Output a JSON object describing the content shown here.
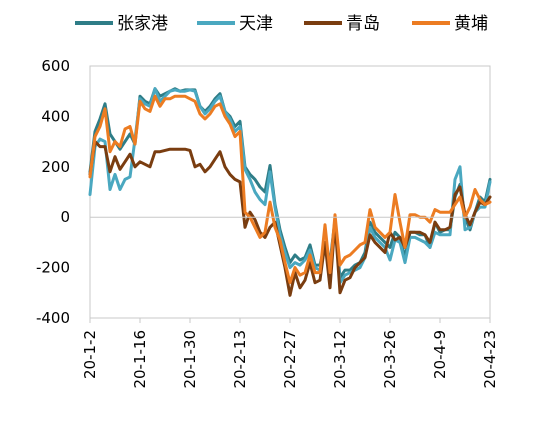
{
  "chart_data": {
    "type": "line",
    "title": "",
    "xlabel": "",
    "ylabel": "",
    "ylim": [
      -400,
      600
    ],
    "yticks": [
      -400,
      -200,
      0,
      200,
      400,
      600
    ],
    "grid": false,
    "legend_position": "top",
    "x_tick_labels": [
      "20-1-2",
      "20-1-16",
      "20-1-30",
      "20-2-13",
      "20-2-27",
      "20-3-12",
      "20-3-26",
      "20-4-9",
      "20-4-23"
    ],
    "x_range": [
      0,
      80
    ],
    "x_tick_positions": [
      0,
      10,
      20,
      30,
      40,
      50,
      60,
      70,
      80
    ],
    "series": [
      {
        "name": "张家港",
        "color": "#2e7d87",
        "x": [
          0,
          1,
          2,
          3,
          4,
          5,
          6,
          7,
          8,
          9,
          10,
          11,
          12,
          13,
          14,
          15,
          16,
          17,
          18,
          19,
          20,
          21,
          22,
          23,
          24,
          25,
          26,
          27,
          28,
          29,
          30,
          31,
          32,
          33,
          34,
          35,
          36,
          37,
          38,
          39,
          40,
          41,
          42,
          43,
          44,
          45,
          46,
          47,
          48,
          49,
          50,
          51,
          52,
          53,
          54,
          55,
          56,
          57,
          58,
          59,
          60,
          61,
          62,
          63,
          64,
          65,
          66,
          67,
          68,
          69,
          70,
          71,
          72,
          73,
          74,
          75,
          76,
          77,
          78,
          79,
          80
        ],
        "y": [
          180,
          340,
          390,
          450,
          330,
          300,
          270,
          300,
          330,
          290,
          480,
          460,
          450,
          510,
          480,
          490,
          500,
          510,
          500,
          505,
          505,
          505,
          440,
          420,
          440,
          470,
          490,
          420,
          400,
          360,
          380,
          200,
          170,
          150,
          120,
          100,
          205,
          50,
          -50,
          -120,
          -180,
          -150,
          -170,
          -160,
          -110,
          -190,
          -190,
          -100,
          -180,
          -10,
          -240,
          -210,
          -210,
          -190,
          -180,
          -140,
          -20,
          -60,
          -80,
          -100,
          -120,
          -60,
          -80,
          -160,
          -60,
          -60,
          -70,
          -70,
          -120,
          -20,
          -60,
          -50,
          -50,
          80,
          130,
          0,
          -50,
          20,
          80,
          60,
          150
        ]
      },
      {
        "name": "天津",
        "color": "#4aa8c0",
        "x": [
          0,
          1,
          2,
          3,
          4,
          5,
          6,
          7,
          8,
          9,
          10,
          11,
          12,
          13,
          14,
          15,
          16,
          17,
          18,
          19,
          20,
          21,
          22,
          23,
          24,
          25,
          26,
          27,
          28,
          29,
          30,
          31,
          32,
          33,
          34,
          35,
          36,
          37,
          38,
          39,
          40,
          41,
          42,
          43,
          44,
          45,
          46,
          47,
          48,
          49,
          50,
          51,
          52,
          53,
          54,
          55,
          56,
          57,
          58,
          59,
          60,
          61,
          62,
          63,
          64,
          65,
          66,
          67,
          68,
          69,
          70,
          71,
          72,
          73,
          74,
          75,
          76,
          77,
          78,
          79,
          80
        ],
        "y": [
          90,
          280,
          310,
          300,
          110,
          170,
          110,
          150,
          160,
          310,
          470,
          450,
          440,
          510,
          460,
          480,
          500,
          505,
          500,
          500,
          505,
          500,
          440,
          410,
          430,
          460,
          480,
          420,
          390,
          340,
          360,
          190,
          150,
          100,
          70,
          50,
          180,
          40,
          -70,
          -140,
          -200,
          -180,
          -190,
          -170,
          -130,
          -200,
          -210,
          -120,
          -200,
          -20,
          -260,
          -230,
          -220,
          -210,
          -200,
          -160,
          -40,
          -80,
          -100,
          -120,
          -170,
          -90,
          -100,
          -180,
          -80,
          -80,
          -90,
          -100,
          -120,
          -60,
          -70,
          -70,
          -70,
          150,
          200,
          -50,
          -40,
          20,
          40,
          40,
          140
        ]
      },
      {
        "name": "青岛",
        "color": "#7a3d10",
        "x": [
          0,
          1,
          2,
          3,
          4,
          5,
          6,
          7,
          8,
          9,
          10,
          11,
          12,
          13,
          14,
          15,
          16,
          17,
          18,
          19,
          20,
          21,
          22,
          23,
          24,
          25,
          26,
          27,
          28,
          29,
          30,
          31,
          32,
          33,
          34,
          35,
          36,
          37,
          38,
          39,
          40,
          41,
          42,
          43,
          44,
          45,
          46,
          47,
          48,
          49,
          50,
          51,
          52,
          53,
          54,
          55,
          56,
          57,
          58,
          59,
          60,
          61,
          62,
          63,
          64,
          65,
          66,
          67,
          68,
          69,
          70,
          71,
          72,
          73,
          74,
          75,
          76,
          77,
          78,
          79,
          80
        ],
        "y": [
          170,
          300,
          280,
          280,
          180,
          240,
          190,
          220,
          250,
          200,
          220,
          210,
          200,
          260,
          260,
          265,
          270,
          270,
          270,
          270,
          265,
          200,
          210,
          180,
          200,
          230,
          260,
          200,
          170,
          150,
          140,
          -40,
          20,
          -10,
          -60,
          -80,
          -40,
          -20,
          -110,
          -200,
          -310,
          -220,
          -280,
          -250,
          -180,
          -260,
          -250,
          -100,
          -280,
          -20,
          -300,
          -250,
          -240,
          -200,
          -180,
          -160,
          -70,
          -100,
          -120,
          -140,
          -60,
          -90,
          -80,
          -120,
          -60,
          -60,
          -60,
          -70,
          -100,
          -20,
          -50,
          -50,
          -40,
          90,
          120,
          10,
          -30,
          20,
          60,
          50,
          80
        ]
      },
      {
        "name": "黄埔",
        "color": "#ec7c22",
        "x": [
          0,
          1,
          2,
          3,
          4,
          5,
          6,
          7,
          8,
          9,
          10,
          11,
          12,
          13,
          14,
          15,
          16,
          17,
          18,
          19,
          20,
          21,
          22,
          23,
          24,
          25,
          26,
          27,
          28,
          29,
          30,
          31,
          32,
          33,
          34,
          35,
          36,
          37,
          38,
          39,
          40,
          41,
          42,
          43,
          44,
          45,
          46,
          47,
          48,
          49,
          50,
          51,
          52,
          53,
          54,
          55,
          56,
          57,
          58,
          59,
          60,
          61,
          62,
          63,
          64,
          65,
          66,
          67,
          68,
          69,
          70,
          71,
          72,
          73,
          74,
          75,
          76,
          77,
          78,
          79,
          80
        ],
        "y": [
          160,
          320,
          360,
          430,
          260,
          300,
          280,
          350,
          360,
          290,
          460,
          430,
          420,
          480,
          440,
          470,
          470,
          480,
          480,
          480,
          470,
          460,
          410,
          390,
          410,
          440,
          450,
          400,
          370,
          320,
          340,
          20,
          0,
          -40,
          -80,
          -60,
          60,
          -40,
          -90,
          -180,
          -260,
          -200,
          -230,
          -220,
          -150,
          -220,
          -220,
          -30,
          -220,
          10,
          -190,
          -160,
          -150,
          -130,
          -110,
          -100,
          30,
          -40,
          -60,
          -80,
          -60,
          90,
          -20,
          -120,
          10,
          10,
          0,
          0,
          -20,
          30,
          20,
          20,
          20,
          50,
          80,
          0,
          40,
          110,
          70,
          50,
          60
        ]
      }
    ]
  }
}
